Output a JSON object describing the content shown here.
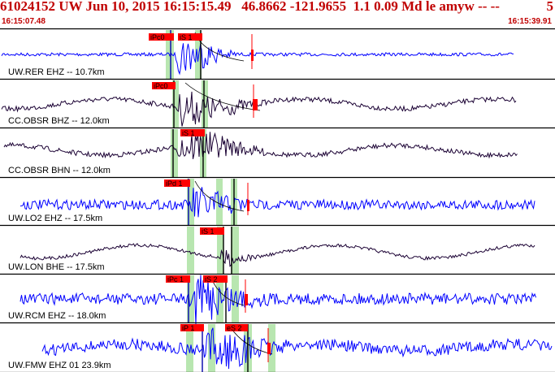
{
  "header": {
    "title": "61024152 UW Jun 10, 2015 16:15:15.49   46.8662 -121.9655  1.1 0.09 Md le amyw -- --",
    "count": "5",
    "start_time": "16:15:07.48",
    "end_time": "16:15:39.91"
  },
  "colors": {
    "header_red": "#c00000",
    "trace_blue": "#0000ff",
    "trace_dark": "#1a0033",
    "pick_flag": "#ff0000",
    "pick_window": "#b8e6b0"
  },
  "channels": [
    {
      "label": "UW.RER EHZ -- 10.7km",
      "color": "blue",
      "picks": [
        "iPc0",
        "iS 1"
      ]
    },
    {
      "label": "CC.OBSR BHZ -- 12.0km",
      "color": "dark",
      "picks": [
        "iPc0"
      ]
    },
    {
      "label": "CC.OBSR BHN -- 12.0km",
      "color": "dark",
      "picks": [
        "iS 1"
      ]
    },
    {
      "label": "UW.LO2 EHZ -- 17.5km",
      "color": "blue",
      "picks": [
        "iPd 1"
      ]
    },
    {
      "label": "UW.LON BHE -- 17.5km",
      "color": "dark",
      "picks": [
        "iS 1"
      ]
    },
    {
      "label": "UW.RCM EHZ -- 18.0km",
      "color": "blue",
      "picks": [
        "iPc 1",
        "iS 2"
      ]
    },
    {
      "label": "UW.FMW EHZ 01 23.9km",
      "color": "blue",
      "picks": [
        "iP 1",
        "eS 2"
      ]
    }
  ]
}
